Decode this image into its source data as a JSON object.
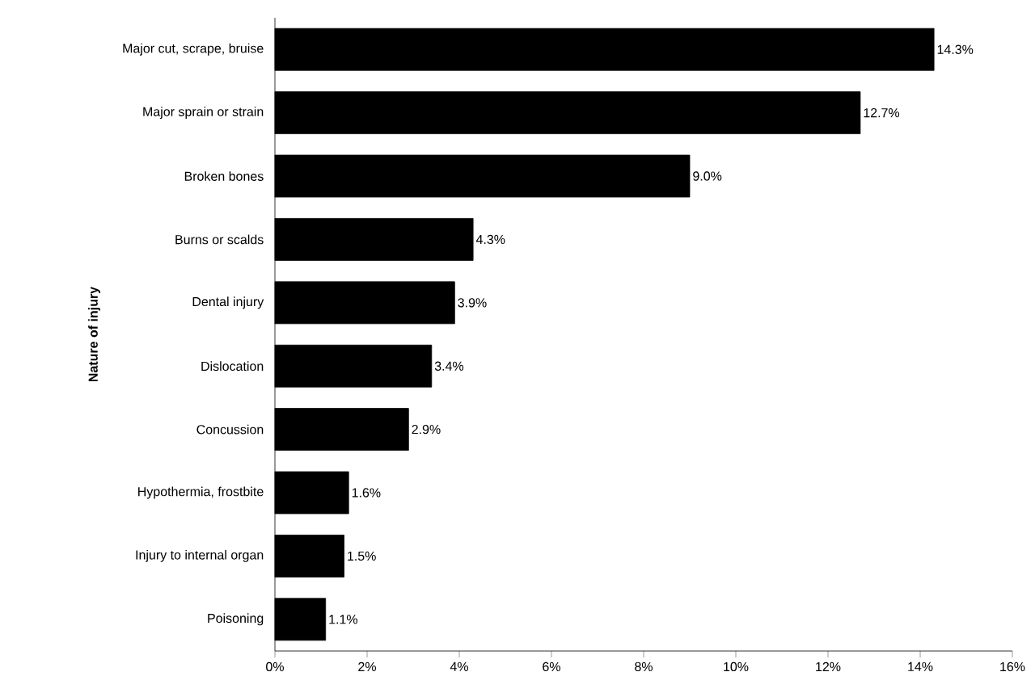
{
  "chart_data": {
    "type": "bar",
    "orientation": "horizontal",
    "ylabel": "Nature of injury",
    "categories": [
      "Major cut, scrape, bruise",
      "Major sprain or strain",
      "Broken bones",
      "Burns or scalds",
      "Dental injury",
      "Dislocation",
      "Concussion",
      "Hypothermia, frostbite",
      "Injury to internal organ",
      "Poisoning"
    ],
    "values": [
      14.3,
      12.7,
      9.0,
      4.3,
      3.9,
      3.4,
      2.9,
      1.6,
      1.5,
      1.1
    ],
    "value_labels": [
      "14.3%",
      "12.7%",
      "9.0%",
      "4.3%",
      "3.9%",
      "3.4%",
      "2.9%",
      "1.6%",
      "1.5%",
      "1.1%"
    ],
    "color": "#000000",
    "xlim": [
      0,
      16
    ],
    "xticks": [
      {
        "value": 0,
        "label": "0%"
      },
      {
        "value": 2,
        "label": "2%"
      },
      {
        "value": 4,
        "label": "4%"
      },
      {
        "value": 6,
        "label": "6%"
      },
      {
        "value": 8,
        "label": "8%"
      },
      {
        "value": 10,
        "label": "10%"
      },
      {
        "value": 12,
        "label": "12%"
      },
      {
        "value": 14,
        "label": "14%"
      },
      {
        "value": 16,
        "label": "16%"
      }
    ],
    "grid": false
  }
}
